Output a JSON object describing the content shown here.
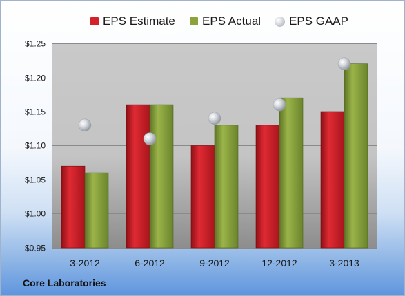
{
  "company_label": "Core Laboratories",
  "chart_data": {
    "type": "bar",
    "categories": [
      "3-2012",
      "6-2012",
      "9-2012",
      "12-2012",
      "3-2013"
    ],
    "series": [
      {
        "name": "EPS Estimate",
        "kind": "bar",
        "color": "#d4212a",
        "values": [
          1.07,
          1.16,
          1.1,
          1.13,
          1.15
        ]
      },
      {
        "name": "EPS Actual",
        "kind": "bar",
        "color": "#8aa33c",
        "values": [
          1.06,
          1.16,
          1.13,
          1.17,
          1.22
        ]
      },
      {
        "name": "EPS GAAP",
        "kind": "marker",
        "color": "#c8ccd2",
        "values": [
          1.13,
          1.11,
          1.14,
          1.16,
          1.22
        ]
      }
    ],
    "ylim": [
      0.95,
      1.25
    ],
    "yticks": [
      0.95,
      1.0,
      1.05,
      1.1,
      1.15,
      1.2,
      1.25
    ],
    "ytick_labels": [
      "$0.95",
      "$1.00",
      "$1.05",
      "$1.10",
      "$1.15",
      "$1.20",
      "$1.25"
    ],
    "grid": true,
    "legend_position": "top"
  }
}
